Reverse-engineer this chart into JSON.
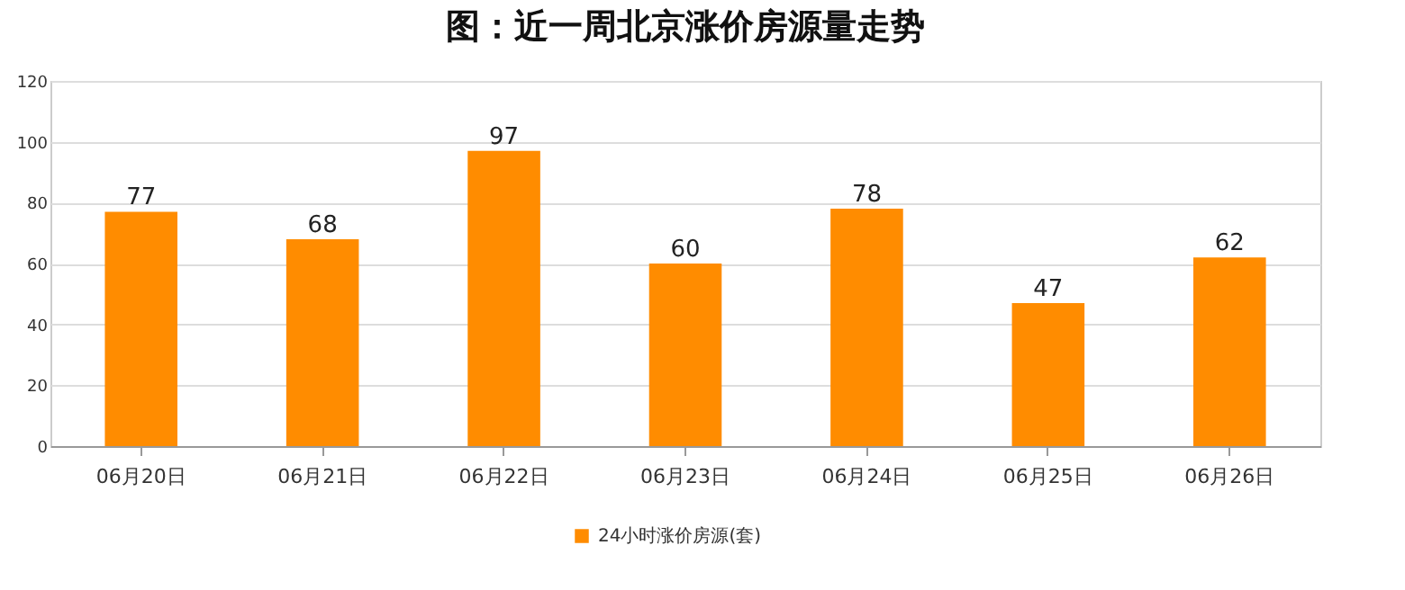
{
  "chart_data": {
    "type": "bar",
    "title": "图：近一周北京涨价房源量走势",
    "categories": [
      "06月20日",
      "06月21日",
      "06月22日",
      "06月23日",
      "06月24日",
      "06月25日",
      "06月26日"
    ],
    "series": [
      {
        "name": "24小时涨价房源(套)",
        "color": "#ff8c00",
        "values": [
          77,
          68,
          97,
          60,
          78,
          47,
          62
        ]
      }
    ],
    "ylim": [
      0,
      120
    ],
    "yticks": [
      0,
      20,
      40,
      60,
      80,
      100,
      120
    ],
    "grid": "y",
    "legend": "bottom",
    "data_labels": true
  }
}
